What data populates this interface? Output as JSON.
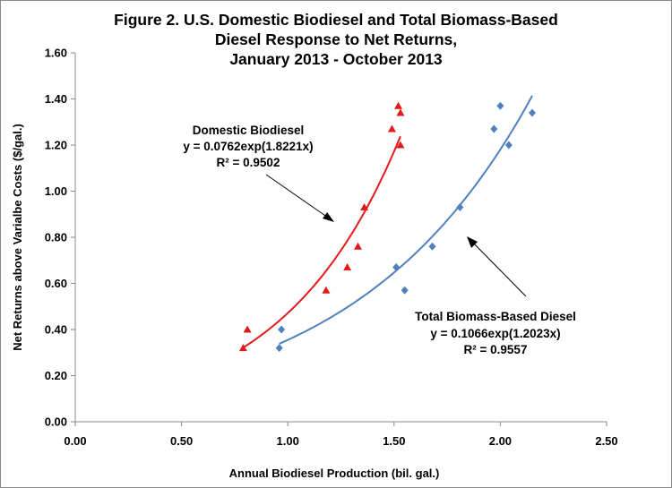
{
  "chart_data": {
    "type": "scatter",
    "title_lines": [
      "Figure 2. U.S. Domestic Biodiesel and Total Biomass-Based",
      "Diesel Response to Net Returns,",
      "January 2013 - October 2013"
    ],
    "xlabel": "Annual Biodiesel Production (bil. gal.)",
    "ylabel": "Net Returns above Varialbe Costs ($/gal.)",
    "xlim": [
      0,
      2.5
    ],
    "ylim": [
      0,
      1.6
    ],
    "x_ticks": [
      "0.00",
      "0.50",
      "1.00",
      "1.50",
      "2.00",
      "2.50"
    ],
    "y_ticks": [
      "0.00",
      "0.20",
      "0.40",
      "0.60",
      "0.80",
      "1.00",
      "1.20",
      "1.40",
      "1.60"
    ],
    "grid": false,
    "series": [
      {
        "name": "Domestic Biodiesel",
        "marker": "triangle",
        "color": "#e31a1c",
        "points": [
          {
            "x": 0.79,
            "y": 0.32
          },
          {
            "x": 0.81,
            "y": 0.4
          },
          {
            "x": 1.18,
            "y": 0.57
          },
          {
            "x": 1.28,
            "y": 0.67
          },
          {
            "x": 1.33,
            "y": 0.76
          },
          {
            "x": 1.36,
            "y": 0.93
          },
          {
            "x": 1.49,
            "y": 1.27
          },
          {
            "x": 1.52,
            "y": 1.37
          },
          {
            "x": 1.53,
            "y": 1.34
          },
          {
            "x": 1.53,
            "y": 1.2
          }
        ],
        "trend": {
          "a": 0.0762,
          "b": 1.8221,
          "x_range": [
            0.79,
            1.53
          ]
        },
        "annotation": [
          "Domestic Biodiesel",
          "y = 0.0762exp(1.8221x)",
          "R² = 0.9502"
        ]
      },
      {
        "name": "Total Biomass-Based Diesel",
        "marker": "diamond",
        "color": "#4f81bd",
        "points": [
          {
            "x": 0.96,
            "y": 0.32
          },
          {
            "x": 0.97,
            "y": 0.4
          },
          {
            "x": 1.51,
            "y": 0.67
          },
          {
            "x": 1.55,
            "y": 0.57
          },
          {
            "x": 1.68,
            "y": 0.76
          },
          {
            "x": 1.81,
            "y": 0.93
          },
          {
            "x": 1.97,
            "y": 1.27
          },
          {
            "x": 2.0,
            "y": 1.37
          },
          {
            "x": 2.04,
            "y": 1.2
          },
          {
            "x": 2.15,
            "y": 1.34
          }
        ],
        "trend": {
          "a": 0.1066,
          "b": 1.2023,
          "x_range": [
            0.96,
            2.15
          ]
        },
        "annotation": [
          "Total Biomass-Based Diesel",
          "y = 0.1066exp(1.2023x)",
          "R² = 0.9557"
        ]
      }
    ]
  }
}
